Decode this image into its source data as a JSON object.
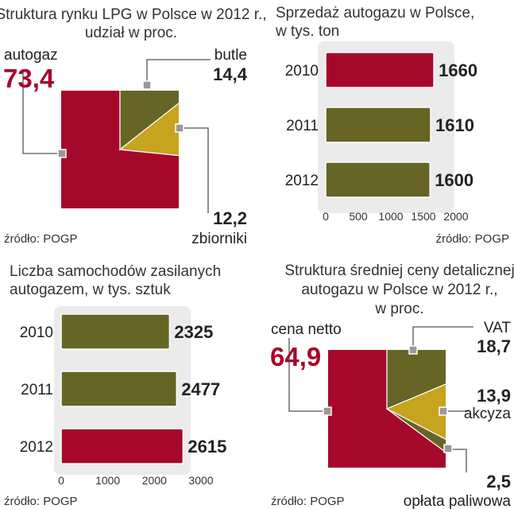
{
  "colors": {
    "red": "#a6082c",
    "olive": "#666526",
    "gold": "#c6a41d",
    "panel": "#ebebeb",
    "connector": "#555555"
  },
  "chart_data": [
    {
      "type": "pie",
      "title": "Struktura rynku LPG w Polsce w 2012 r.,",
      "subtitle": "udział w proc.",
      "source": "źródło: POGP",
      "slices": [
        {
          "label": "autogaz",
          "value": 73.4,
          "display": "73,4",
          "color": "red"
        },
        {
          "label": "butle",
          "value": 14.4,
          "display": "14,4",
          "color": "olive"
        },
        {
          "label": "zbiorniki",
          "value": 12.2,
          "display": "12,2",
          "color": "gold"
        }
      ]
    },
    {
      "type": "bar",
      "title": "Sprzedaż autogazu w Polsce,",
      "subtitle": "w tys. ton",
      "source": "źródło: POGP",
      "categories": [
        "2010",
        "2011",
        "2012"
      ],
      "values": [
        1660,
        1610,
        1600
      ],
      "value_labels": [
        "1660",
        "1610",
        "1600"
      ],
      "bar_colors": [
        "red",
        "olive",
        "olive"
      ],
      "xlim": [
        0,
        2000
      ],
      "xticks": [
        "0",
        "500",
        "1000",
        "1500",
        "2000"
      ]
    },
    {
      "type": "bar",
      "title": "Liczba samochodów zasilanych",
      "subtitle": "autogazem, w tys. sztuk",
      "source": "źródło: POGP",
      "categories": [
        "2010",
        "2011",
        "2012"
      ],
      "values": [
        2325,
        2477,
        2615
      ],
      "value_labels": [
        "2325",
        "2477",
        "2615"
      ],
      "bar_colors": [
        "olive",
        "olive",
        "red"
      ],
      "xlim": [
        0,
        3000
      ],
      "xticks": [
        "0",
        "1000",
        "2000",
        "3000"
      ]
    },
    {
      "type": "pie",
      "title_lines": [
        "Struktura średniej ceny detalicznej",
        "autogazu w Polsce w 2012 r.,",
        "w proc."
      ],
      "source": "źródło: POGP",
      "slices": [
        {
          "label": "cena netto",
          "value": 64.9,
          "display": "64,9",
          "color": "red"
        },
        {
          "label": "VAT",
          "value": 18.7,
          "display": "18,7",
          "color": "olive"
        },
        {
          "label": "akcyza",
          "value": 13.9,
          "display": "13,9",
          "color": "gold"
        },
        {
          "label": "opłata paliwowa",
          "value": 2.5,
          "display": "2,5",
          "color": "olive"
        }
      ]
    }
  ]
}
